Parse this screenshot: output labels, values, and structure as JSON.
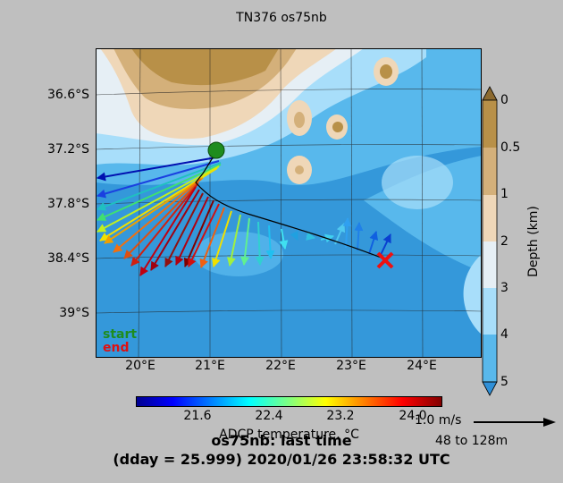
{
  "title": "TN376 os75nb",
  "lat_ticks": [
    "36.6°S",
    "37.2°S",
    "37.8°S",
    "38.4°S",
    "39°S"
  ],
  "lon_ticks": [
    "20°E",
    "21°E",
    "22°E",
    "23°E",
    "24°E"
  ],
  "depth_colorbar": {
    "label": "Depth (km)",
    "ticks": [
      "0",
      "0.5",
      "1",
      "2",
      "3",
      "4",
      "5"
    ],
    "colors": [
      "#b89048",
      "#d4b07a",
      "#efd7b8",
      "#e6eff5",
      "#a8defa",
      "#58b8ec",
      "#3090d8"
    ]
  },
  "velocity_colorbar": {
    "label": "ADCP temperature, °C",
    "ticks": [
      "21.6",
      "22.4",
      "23.2",
      "24.0"
    ]
  },
  "legend": {
    "start": "start",
    "end": "end"
  },
  "scale": {
    "speed": "1.0 m/s",
    "depth_range": "48 to 128m"
  },
  "footer": {
    "line1": "os75nb: last time",
    "line2": "(dday = 25.999) 2020/01/26 23:58:32 UTC"
  },
  "colors": {
    "start_marker": "#1e8c1e",
    "end_marker": "#ee1111",
    "ship_track": "#000000"
  }
}
